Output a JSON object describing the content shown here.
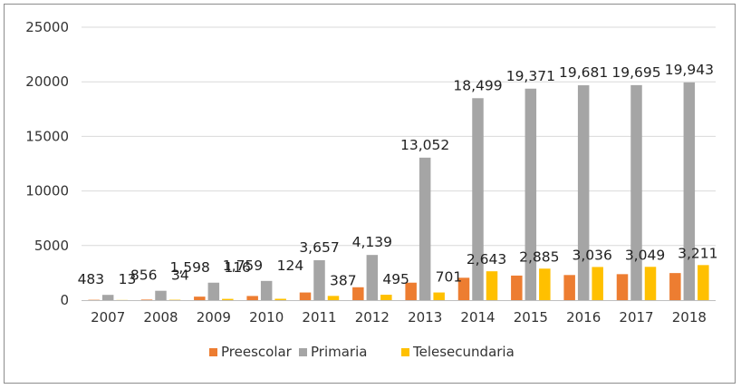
{
  "chart_data": {
    "type": "bar",
    "categories": [
      "2007",
      "2008",
      "2009",
      "2010",
      "2011",
      "2012",
      "2013",
      "2014",
      "2015",
      "2016",
      "2017",
      "2018"
    ],
    "series": [
      {
        "name": "Preescolar",
        "color": "#ed7d31",
        "values": [
          30,
          50,
          320,
          380,
          700,
          1180,
          1600,
          2050,
          2250,
          2300,
          2380,
          2480
        ]
      },
      {
        "name": "Primaria",
        "color": "#a5a5a5",
        "values": [
          483,
          856,
          1598,
          1759,
          3657,
          4139,
          13052,
          18499,
          19371,
          19681,
          19695,
          19943
        ],
        "labels": [
          "483",
          "856",
          "1,598",
          "1,759",
          "3,657",
          "4,139",
          "13,052",
          "18,499",
          "19,371",
          "19,681",
          "19,695",
          "19,943"
        ]
      },
      {
        "name": "Telesecundaria",
        "color": "#ffc000",
        "values": [
          13,
          34,
          116,
          124,
          387,
          495,
          701,
          2643,
          2885,
          3036,
          3049,
          3211
        ],
        "labels": [
          "13",
          "34",
          "116",
          "124",
          "387",
          "495",
          "701",
          "2,643",
          "2,885",
          "3,036",
          "3,049",
          "3,211"
        ]
      }
    ],
    "ylim": [
      0,
      25000
    ],
    "yticks": [
      0,
      5000,
      10000,
      15000,
      20000,
      25000
    ],
    "ytick_labels": [
      "0",
      "5000",
      "10000",
      "15000",
      "20000",
      "25000"
    ],
    "grid": true,
    "legend": "bottom",
    "title": "",
    "xlabel": "",
    "ylabel": ""
  }
}
